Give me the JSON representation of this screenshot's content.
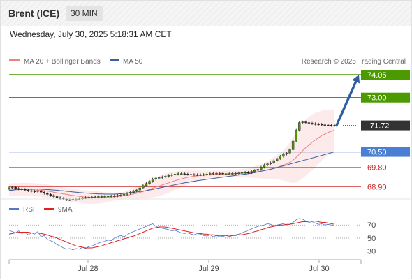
{
  "header": {
    "instrument": "Brent (ICE)",
    "timeframe": "30 MIN"
  },
  "datetime": "Wednesday, July 30, 2025 5:18:31 AM CET",
  "legend": {
    "ma_bb": "MA 20 + Bollinger Bands",
    "ma50": "MA 50",
    "credit": "Research © 2025 Trading Central"
  },
  "rsi_legend": {
    "rsi": "RSI",
    "ma": "9MA"
  },
  "colors": {
    "up": "#4a9a00",
    "blue_level": "#4a7fd4",
    "red_level": "#cc2222",
    "ma20": "#f08080",
    "ma50": "#3a5fa0",
    "arrow": "#2f5f9e",
    "current": "#333333",
    "rsi": "#5577cc",
    "rsi_ma": "#dd2222"
  },
  "chart_data": [
    {
      "type": "candlestick",
      "ylim": [
        68.4,
        74.5
      ],
      "x_ticks": [
        "Jul 28",
        "Jul 29",
        "Jul 30"
      ],
      "levels": [
        {
          "value": 74.05,
          "label": "74.05",
          "kind": "target"
        },
        {
          "value": 73.0,
          "label": "73.00",
          "kind": "target"
        },
        {
          "value": 71.72,
          "label": "71.72",
          "kind": "current"
        },
        {
          "value": 70.5,
          "label": "70.50",
          "kind": "pivot"
        },
        {
          "value": 69.8,
          "label": "69.80",
          "kind": "support"
        },
        {
          "value": 68.9,
          "label": "68.90",
          "kind": "support"
        }
      ],
      "close": [
        68.85,
        68.88,
        68.82,
        68.8,
        68.78,
        68.75,
        68.72,
        68.7,
        68.68,
        68.72,
        68.65,
        68.6,
        68.55,
        68.5,
        68.45,
        68.4,
        68.36,
        68.33,
        68.3,
        68.3,
        68.31,
        68.33,
        68.35,
        68.38,
        68.4,
        68.42,
        68.43,
        68.44,
        68.45,
        68.45,
        68.46,
        68.47,
        68.47,
        68.48,
        68.5,
        68.52,
        68.55,
        68.6,
        68.65,
        68.7,
        68.75,
        68.85,
        68.95,
        69.05,
        69.15,
        69.25,
        69.3,
        69.32,
        69.35,
        69.38,
        69.42,
        69.45,
        69.48,
        69.5,
        69.5,
        69.48,
        69.47,
        69.46,
        69.45,
        69.45,
        69.45,
        69.46,
        69.48,
        69.5,
        69.52,
        69.52,
        69.52,
        69.5,
        69.5,
        69.5,
        69.51,
        69.52,
        69.53,
        69.55,
        69.56,
        69.55,
        69.6,
        69.65,
        69.7,
        69.8,
        69.9,
        69.95,
        70.0,
        70.1,
        70.2,
        70.3,
        70.4,
        70.45,
        70.6,
        71.0,
        71.5,
        71.85,
        71.88,
        71.85,
        71.82,
        71.8,
        71.78,
        71.77,
        71.75,
        71.74,
        71.73,
        71.72,
        71.72
      ],
      "ma20": [
        68.75,
        68.76,
        68.77,
        68.77,
        68.78,
        68.78,
        68.78,
        68.77,
        68.76,
        68.75,
        68.74,
        68.72,
        68.7,
        68.68,
        68.65,
        68.62,
        68.6,
        68.57,
        68.55,
        68.52,
        68.5,
        68.48,
        68.46,
        68.44,
        68.43,
        68.42,
        68.41,
        68.41,
        68.4,
        68.4,
        68.41,
        68.42,
        68.43,
        68.44,
        68.45,
        68.47,
        68.49,
        68.51,
        68.54,
        68.57,
        68.6,
        68.64,
        68.68,
        68.73,
        68.78,
        68.83,
        68.88,
        68.93,
        68.98,
        69.03,
        69.08,
        69.13,
        69.18,
        69.22,
        69.26,
        69.3,
        69.33,
        69.36,
        69.38,
        69.4,
        69.42,
        69.43,
        69.44,
        69.45,
        69.46,
        69.47,
        69.48,
        69.48,
        69.49,
        69.49,
        69.5,
        69.5,
        69.51,
        69.52,
        69.53,
        69.54,
        69.55,
        69.57,
        69.59,
        69.61,
        69.64,
        69.67,
        69.71,
        69.75,
        69.79,
        69.84,
        69.89,
        69.95,
        70.02,
        70.12,
        70.25,
        70.4,
        70.55,
        70.7,
        70.82,
        70.94,
        71.05,
        71.15,
        71.25,
        71.32,
        71.4,
        71.45,
        71.5
      ],
      "ma50": [
        68.72,
        68.74,
        68.76,
        68.77,
        68.78,
        68.79,
        68.79,
        68.8,
        68.8,
        68.8,
        68.79,
        68.78,
        68.77,
        68.76,
        68.75,
        68.74,
        68.72,
        68.71,
        68.69,
        68.68,
        68.66,
        68.65,
        68.63,
        68.62,
        68.61,
        68.6,
        68.59,
        68.58,
        68.57,
        68.57,
        68.56,
        68.56,
        68.56,
        68.56,
        68.57,
        68.58,
        68.59,
        68.6,
        68.62,
        68.64,
        68.66,
        68.68,
        68.7,
        68.72,
        68.75,
        68.78,
        68.81,
        68.84,
        68.87,
        68.9,
        68.93,
        68.96,
        68.99,
        69.02,
        69.05,
        69.08,
        69.1,
        69.13,
        69.15,
        69.18,
        69.2,
        69.22,
        69.24,
        69.26,
        69.28,
        69.3,
        69.32,
        69.34,
        69.36,
        69.38,
        69.4,
        69.42,
        69.44,
        69.46,
        69.48,
        69.5,
        69.52,
        69.55,
        69.58,
        69.61,
        69.64,
        69.67,
        69.7,
        69.74,
        69.78,
        69.82,
        69.86,
        69.9,
        69.94,
        69.98,
        70.02,
        70.06,
        70.1,
        70.14,
        70.18,
        70.22,
        70.26,
        70.3,
        70.34,
        70.38,
        70.42,
        70.46,
        70.5
      ],
      "bb_width": [
        0.3,
        0.3,
        0.3,
        0.3,
        0.3,
        0.3,
        0.3,
        0.3,
        0.3,
        0.3,
        0.3,
        0.3,
        0.3,
        0.3,
        0.3,
        0.3,
        0.3,
        0.3,
        0.3,
        0.3,
        0.3,
        0.3,
        0.3,
        0.3,
        0.3,
        0.3,
        0.3,
        0.3,
        0.28,
        0.26,
        0.24,
        0.22,
        0.2,
        0.18,
        0.17,
        0.17,
        0.18,
        0.2,
        0.23,
        0.27,
        0.3,
        0.33,
        0.36,
        0.38,
        0.4,
        0.42,
        0.44,
        0.45,
        0.46,
        0.47,
        0.46,
        0.44,
        0.42,
        0.4,
        0.38,
        0.35,
        0.32,
        0.3,
        0.27,
        0.25,
        0.23,
        0.21,
        0.2,
        0.19,
        0.18,
        0.17,
        0.16,
        0.16,
        0.16,
        0.16,
        0.16,
        0.17,
        0.18,
        0.19,
        0.2,
        0.22,
        0.24,
        0.27,
        0.3,
        0.33,
        0.37,
        0.41,
        0.46,
        0.51,
        0.56,
        0.62,
        0.7,
        0.8,
        0.92,
        1.05,
        1.15,
        1.22,
        1.27,
        1.3,
        1.3,
        1.28,
        1.25,
        1.2,
        1.15,
        1.1,
        1.05,
        1.0,
        0.95
      ]
    },
    {
      "type": "line",
      "ylim": [
        20,
        82
      ],
      "y_ticks": [
        70,
        50,
        30
      ],
      "series": [
        {
          "name": "RSI",
          "values": [
            62,
            60,
            58,
            61,
            57,
            59,
            55,
            58,
            56,
            60,
            52,
            54,
            48,
            46,
            44,
            40,
            38,
            35,
            33,
            34,
            32,
            34,
            33,
            36,
            34,
            37,
            38,
            40,
            42,
            44,
            45,
            47,
            46,
            50,
            52,
            54,
            52,
            55,
            58,
            60,
            62,
            64,
            66,
            68,
            70,
            72,
            68,
            66,
            65,
            64,
            63,
            61,
            62,
            60,
            58,
            57,
            58,
            56,
            55,
            57,
            56,
            54,
            53,
            55,
            52,
            54,
            52,
            53,
            51,
            52,
            54,
            55,
            56,
            58,
            60,
            62,
            64,
            66,
            68,
            69,
            70,
            72,
            71,
            69,
            70,
            71,
            72,
            70,
            71,
            74,
            78,
            80,
            79,
            76,
            74,
            75,
            73,
            71,
            72,
            70,
            71,
            70,
            69
          ]
        },
        {
          "name": "9MA",
          "values": [
            56,
            57,
            58,
            59,
            59,
            59,
            59,
            58,
            58,
            58,
            57,
            56,
            55,
            53,
            52,
            50,
            48,
            46,
            44,
            42,
            40,
            38,
            37,
            36,
            35,
            35,
            35,
            36,
            37,
            38,
            40,
            41,
            43,
            44,
            46,
            47,
            49,
            50,
            52,
            53,
            55,
            57,
            59,
            61,
            63,
            65,
            66,
            67,
            67,
            67,
            66,
            65,
            64,
            63,
            62,
            61,
            60,
            59,
            58,
            58,
            57,
            56,
            56,
            55,
            55,
            54,
            54,
            54,
            54,
            53,
            54,
            54,
            55,
            55,
            56,
            57,
            58,
            60,
            61,
            63,
            64,
            66,
            67,
            68,
            69,
            70,
            70,
            71,
            71,
            72,
            73,
            74,
            75,
            75,
            76,
            76,
            76,
            75,
            74,
            74,
            73,
            72,
            71
          ]
        }
      ]
    }
  ]
}
